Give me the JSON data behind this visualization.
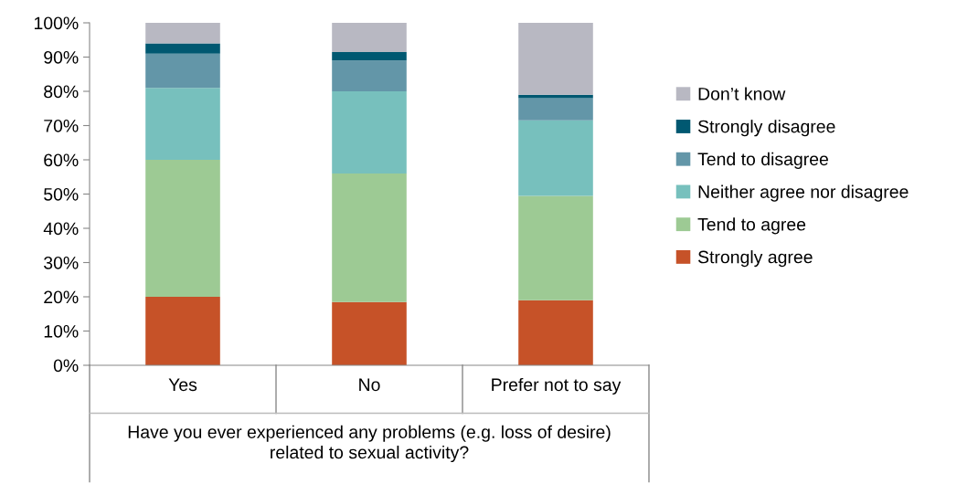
{
  "chart_data": {
    "type": "bar",
    "stacked": true,
    "xlabel": "Have you ever experienced any problems (e.g. loss of desire) related to sexual activity?",
    "categories": [
      "Yes",
      "No",
      "Prefer not to say"
    ],
    "ylim": [
      0,
      100
    ],
    "yticks": [
      {
        "value": 0,
        "label": "0%"
      },
      {
        "value": 10,
        "label": "10%"
      },
      {
        "value": 20,
        "label": "20%"
      },
      {
        "value": 30,
        "label": "30%"
      },
      {
        "value": 40,
        "label": "40%"
      },
      {
        "value": 50,
        "label": "50%"
      },
      {
        "value": 60,
        "label": "60%"
      },
      {
        "value": 70,
        "label": "70%"
      },
      {
        "value": 80,
        "label": "80%"
      },
      {
        "value": 90,
        "label": "90%"
      },
      {
        "value": 100,
        "label": "100%"
      }
    ],
    "grid": false,
    "legend": "right",
    "series": [
      {
        "name": "Strongly agree",
        "color": "#c65228",
        "values": [
          20,
          18.5,
          19
        ]
      },
      {
        "name": "Tend to agree",
        "color": "#9dca94",
        "values": [
          40,
          37.5,
          30.5
        ]
      },
      {
        "name": "Neither agree nor disagree",
        "color": "#77c0bd",
        "values": [
          21,
          24,
          22
        ]
      },
      {
        "name": "Tend to disagree",
        "color": "#6396a8",
        "values": [
          10,
          9,
          6.5
        ]
      },
      {
        "name": "Strongly disagree",
        "color": "#005871",
        "values": [
          3,
          2.5,
          1
        ]
      },
      {
        "name": "Don’t know",
        "color": "#b8b8c2",
        "values": [
          6,
          8.5,
          21
        ]
      }
    ]
  }
}
